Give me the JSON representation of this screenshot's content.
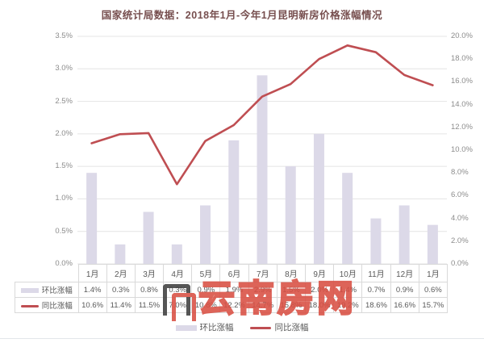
{
  "title": "国家统计局数据：2018年1月-今年1月昆明新房价格涨幅情况",
  "watermark": {
    "text": "云南房网",
    "logo": "door-frames-logo"
  },
  "footer_legend": [
    {
      "swatch": "bar",
      "label": "环比涨幅"
    },
    {
      "swatch": "line",
      "label": "同比涨幅"
    }
  ],
  "colors": {
    "bar": "#dcd9e8",
    "line": "#bf4e52",
    "grid": "#e4e4e4",
    "axis_text": "#8c8c8c",
    "table_text": "#595959",
    "table_border": "#d9d9d9",
    "title_text": "#774f4f",
    "watermark_red": "#d94f43",
    "watermark_dark": "#3f3f3f"
  },
  "chart_data": {
    "type": "bar",
    "subtype": "combo-bar-line",
    "title": "国家统计局数据：2018年1月-今年1月昆明新房价格涨幅情况",
    "categories": [
      "1月",
      "2月",
      "3月",
      "4月",
      "5月",
      "6月",
      "7月",
      "8月",
      "9月",
      "10月",
      "11月",
      "12月",
      "1月"
    ],
    "series": [
      {
        "name": "环比涨幅",
        "type": "bar",
        "axis": "left",
        "values": [
          1.4,
          0.3,
          0.8,
          0.3,
          0.9,
          1.9,
          2.9,
          1.5,
          2.0,
          1.4,
          0.7,
          0.9,
          0.6
        ],
        "labels": [
          "1.4%",
          "0.3%",
          "0.8%",
          "0.3%",
          "0.9%",
          "1.9%",
          "2.9%",
          "1.5%",
          "2.0%",
          "1.4%",
          "0.7%",
          "0.9%",
          "0.6%"
        ]
      },
      {
        "name": "同比涨幅",
        "type": "line",
        "axis": "right",
        "values": [
          10.6,
          11.4,
          11.5,
          7.0,
          10.8,
          12.2,
          14.7,
          15.8,
          18.0,
          19.2,
          18.6,
          16.6,
          15.7
        ],
        "labels": [
          "10.6%",
          "11.4%",
          "11.5%",
          "7.0%",
          "10.8%",
          "12.2%",
          "14.7%",
          "15.8%",
          "18.0%",
          "19.2%",
          "18.6%",
          "16.6%",
          "15.7%"
        ]
      }
    ],
    "left_axis": {
      "min": 0,
      "max": 3.5,
      "ticks": [
        "3.5%",
        "3.0%",
        "2.5%",
        "2.0%",
        "1.5%",
        "1.0%",
        "0.5%",
        "0.0%"
      ]
    },
    "right_axis": {
      "min": 0,
      "max": 20,
      "ticks": [
        "20.0%",
        "18.0%",
        "16.0%",
        "14.0%",
        "12.0%",
        "10.0%",
        "8.0%",
        "6.0%",
        "4.0%",
        "2.0%",
        "0.0%"
      ]
    },
    "grid": true,
    "legend_position": "bottom",
    "data_table_shown": true
  }
}
